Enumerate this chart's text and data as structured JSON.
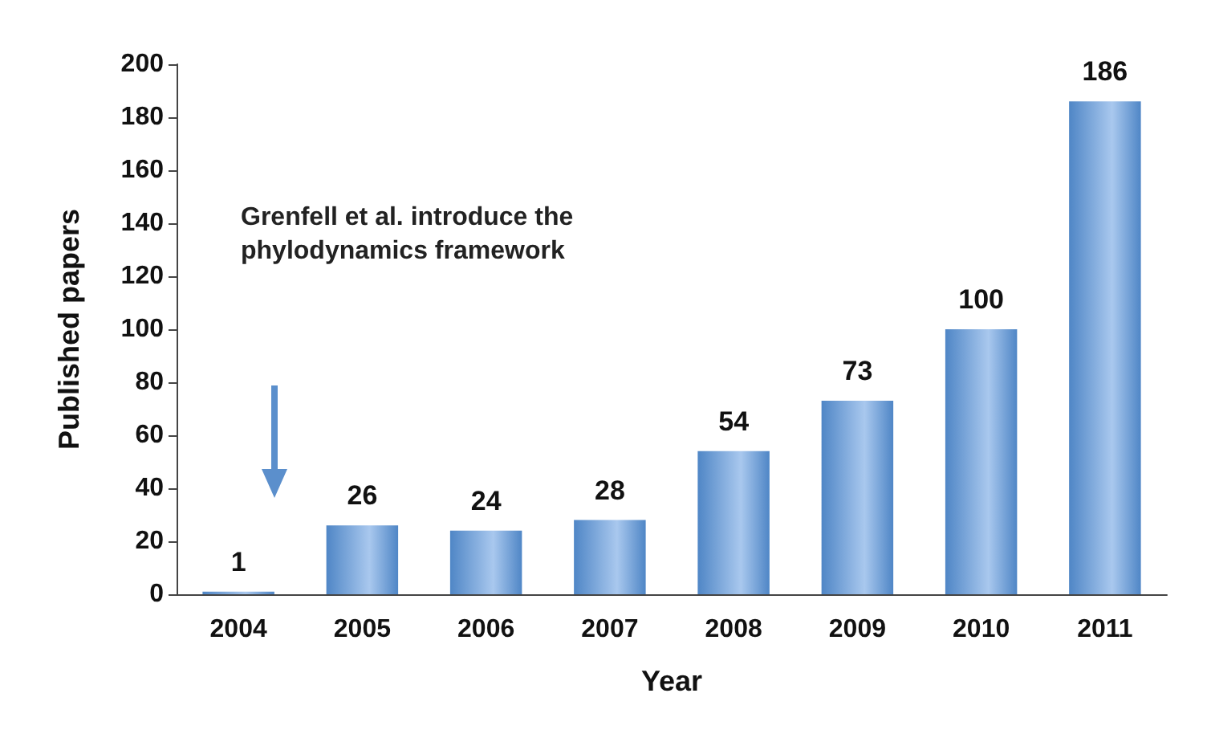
{
  "chart_data": {
    "type": "bar",
    "xlabel": "Year",
    "ylabel": "Published papers",
    "categories": [
      "2004",
      "2005",
      "2006",
      "2007",
      "2008",
      "2009",
      "2010",
      "2011"
    ],
    "values": [
      1,
      26,
      24,
      28,
      54,
      73,
      100,
      186
    ],
    "color": "#4f86c6",
    "ylim": [
      0,
      200
    ],
    "yticks": [
      0,
      20,
      40,
      60,
      80,
      100,
      120,
      140,
      160,
      180,
      200
    ],
    "grid": false,
    "data_labels": true,
    "annotations": [
      "Grenfell et al. introduce the phylodynamics framework"
    ]
  }
}
